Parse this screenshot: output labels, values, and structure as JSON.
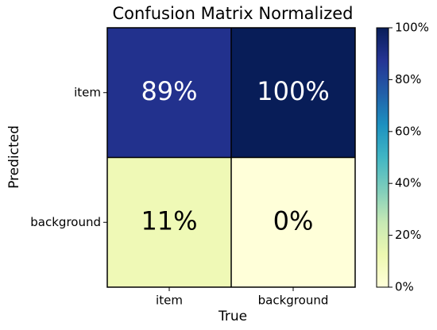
{
  "chart_data": {
    "type": "heatmap",
    "title": "Confusion Matrix Normalized",
    "x_label": "True",
    "y_label": "Predicted",
    "x_categories": [
      "item",
      "background"
    ],
    "y_categories": [
      "item",
      "background"
    ],
    "values": [
      [
        89,
        100
      ],
      [
        11,
        0
      ]
    ],
    "value_labels": [
      [
        "89%",
        "100%"
      ],
      [
        "11%",
        "0%"
      ]
    ],
    "colormap": [
      "#ffffd9",
      "#edf8b1",
      "#c7e9b4",
      "#7fcdbb",
      "#41b6c4",
      "#1d91c0",
      "#225ea8",
      "#253494",
      "#081d58"
    ],
    "clim": [
      0,
      100
    ],
    "cticks": [
      {
        "value": 0,
        "label": "0%"
      },
      {
        "value": 20,
        "label": "20%"
      },
      {
        "value": 40,
        "label": "40%"
      },
      {
        "value": 60,
        "label": "60%"
      },
      {
        "value": 80,
        "label": "80%"
      },
      {
        "value": 100,
        "label": "100%"
      }
    ]
  }
}
